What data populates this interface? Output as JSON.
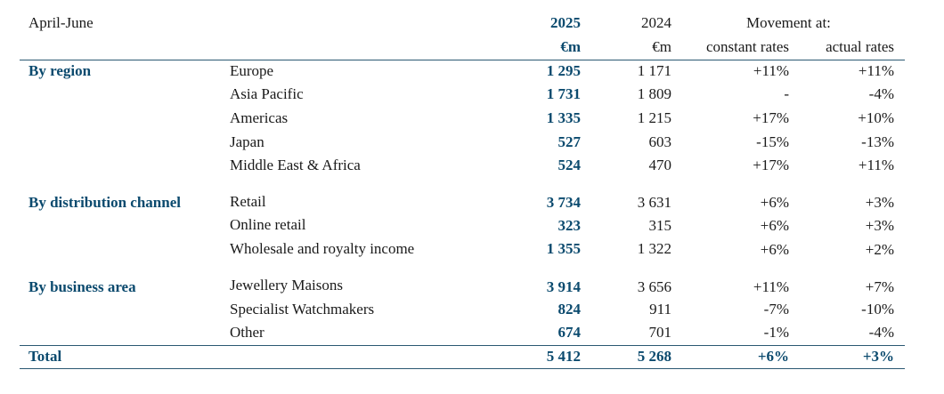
{
  "header": {
    "period": "April-June",
    "year_current": "2025",
    "year_prior": "2024",
    "movement": "Movement at:",
    "unit_current": "€m",
    "unit_prior": "€m",
    "constant_rates": "constant rates",
    "actual_rates": "actual rates"
  },
  "sections": [
    {
      "title": "By region",
      "rows": [
        {
          "label": "Europe",
          "v2025": "1 295",
          "v2024": "1 171",
          "constant": "+11%",
          "actual": "+11%"
        },
        {
          "label": "Asia Pacific",
          "v2025": "1 731",
          "v2024": "1 809",
          "constant": "-",
          "actual": "-4%"
        },
        {
          "label": "Americas",
          "v2025": "1 335",
          "v2024": "1 215",
          "constant": "+17%",
          "actual": "+10%"
        },
        {
          "label": "Japan",
          "v2025": "527",
          "v2024": "603",
          "constant": "-15%",
          "actual": "-13%"
        },
        {
          "label": "Middle East & Africa",
          "v2025": "524",
          "v2024": "470",
          "constant": "+17%",
          "actual": "+11%"
        }
      ]
    },
    {
      "title": "By distribution channel",
      "rows": [
        {
          "label": "Retail",
          "v2025": "3 734",
          "v2024": "3 631",
          "constant": "+6%",
          "actual": "+3%"
        },
        {
          "label": "Online retail",
          "v2025": "323",
          "v2024": "315",
          "constant": "+6%",
          "actual": "+3%"
        },
        {
          "label": "Wholesale and royalty income",
          "v2025": "1 355",
          "v2024": "1 322",
          "constant": "+6%",
          "actual": "+2%"
        }
      ]
    },
    {
      "title": "By business area",
      "rows": [
        {
          "label": "Jewellery Maisons",
          "v2025": "3 914",
          "v2024": "3 656",
          "constant": "+11%",
          "actual": "+7%"
        },
        {
          "label": "Specialist Watchmakers",
          "v2025": "824",
          "v2024": "911",
          "constant": "-7%",
          "actual": "-10%"
        },
        {
          "label": "Other",
          "v2025": "674",
          "v2024": "701",
          "constant": "-1%",
          "actual": "-4%"
        }
      ]
    }
  ],
  "total": {
    "label": "Total",
    "v2025": "5 412",
    "v2024": "5 268",
    "constant": "+6%",
    "actual": "+3%"
  },
  "colors": {
    "accent": "#0b4a6e",
    "rule": "#2a5872",
    "text": "#1a1a1a"
  }
}
